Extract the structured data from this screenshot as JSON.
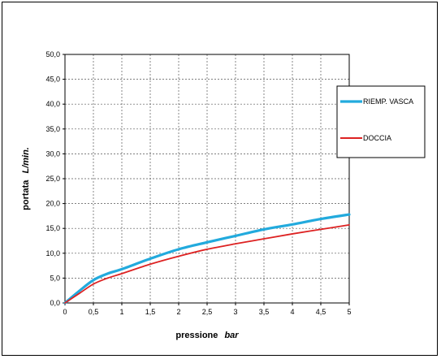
{
  "chart_data": {
    "type": "line",
    "xlabel": "pressione",
    "xlabel_unit": "bar",
    "ylabel": "portata",
    "ylabel_unit": "L/min.",
    "xlim": [
      0,
      5
    ],
    "ylim": [
      0,
      50
    ],
    "x_ticks": [
      "0",
      "0,5",
      "1",
      "1,5",
      "2",
      "2,5",
      "3",
      "3,5",
      "4",
      "4,5",
      "5"
    ],
    "y_ticks": [
      "0,0",
      "5,0",
      "10,0",
      "15,0",
      "20,0",
      "25,0",
      "30,0",
      "35,0",
      "40,0",
      "45,0",
      "50,0"
    ],
    "grid": true,
    "legend_position": "right",
    "series": [
      {
        "name": "RIEMP. VASCA",
        "color": "#22aadd",
        "x": [
          0,
          0.25,
          0.5,
          0.75,
          1,
          1.5,
          2,
          2.5,
          3,
          3.5,
          4,
          4.5,
          5
        ],
        "y": [
          0,
          2.4,
          4.6,
          5.9,
          6.8,
          8.9,
          10.8,
          12.2,
          13.5,
          14.8,
          15.8,
          16.9,
          17.8
        ]
      },
      {
        "name": "DOCCIA",
        "color": "#dd2222",
        "x": [
          0,
          0.25,
          0.5,
          0.75,
          1,
          1.5,
          2,
          2.5,
          3,
          3.5,
          4,
          4.5,
          5
        ],
        "y": [
          0,
          1.9,
          3.8,
          5.0,
          5.9,
          7.8,
          9.4,
          10.8,
          11.9,
          12.9,
          13.9,
          14.8,
          15.7
        ]
      }
    ]
  }
}
